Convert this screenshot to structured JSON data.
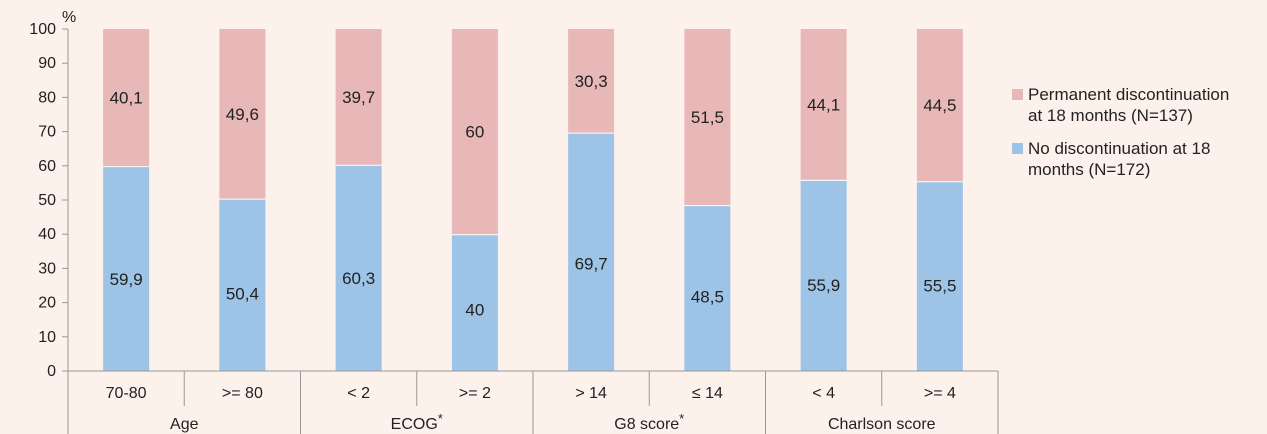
{
  "chart_data": {
    "type": "bar",
    "stacked": true,
    "ylabel": "%",
    "ylim": [
      0,
      100
    ],
    "yticks": [
      0,
      10,
      20,
      30,
      40,
      50,
      60,
      70,
      80,
      90,
      100
    ],
    "categories": [
      "70-80",
      ">= 80",
      "< 2",
      ">= 2",
      "> 14",
      "≤ 14",
      "< 4",
      ">= 4"
    ],
    "groups": [
      {
        "label": "Age",
        "marker": "",
        "span": [
          0,
          1
        ]
      },
      {
        "label": "ECOG",
        "marker": "*",
        "span": [
          2,
          3
        ]
      },
      {
        "label": "G8 score",
        "marker": "*",
        "span": [
          4,
          5
        ]
      },
      {
        "label": "Charlson score",
        "marker": "",
        "span": [
          6,
          7
        ]
      }
    ],
    "series": [
      {
        "name": "No discontinuation at 18 months (N=172)",
        "name_lines": [
          "No discontinuation at 18",
          "months (N=172)"
        ],
        "color": "#9dc3e6",
        "values": [
          59.9,
          50.4,
          60.3,
          40,
          69.7,
          48.5,
          55.9,
          55.5
        ],
        "labels": [
          "59,9",
          "50,4",
          "60,3",
          "40",
          "69,7",
          "48,5",
          "55,9",
          "55,5"
        ]
      },
      {
        "name": "Permanent discontinuation at 18 months (N=137)",
        "name_lines": [
          "Permanent discontinuation",
          "at 18 months (N=137)"
        ],
        "color": "#e8b7b7",
        "values": [
          40.1,
          49.6,
          39.7,
          60,
          30.3,
          51.5,
          44.1,
          44.5
        ],
        "labels": [
          "40,1",
          "49,6",
          "39,7",
          "60",
          "30,3",
          "51,5",
          "44,1",
          "44,5"
        ]
      }
    ],
    "legend_position": "right",
    "grid": false
  }
}
